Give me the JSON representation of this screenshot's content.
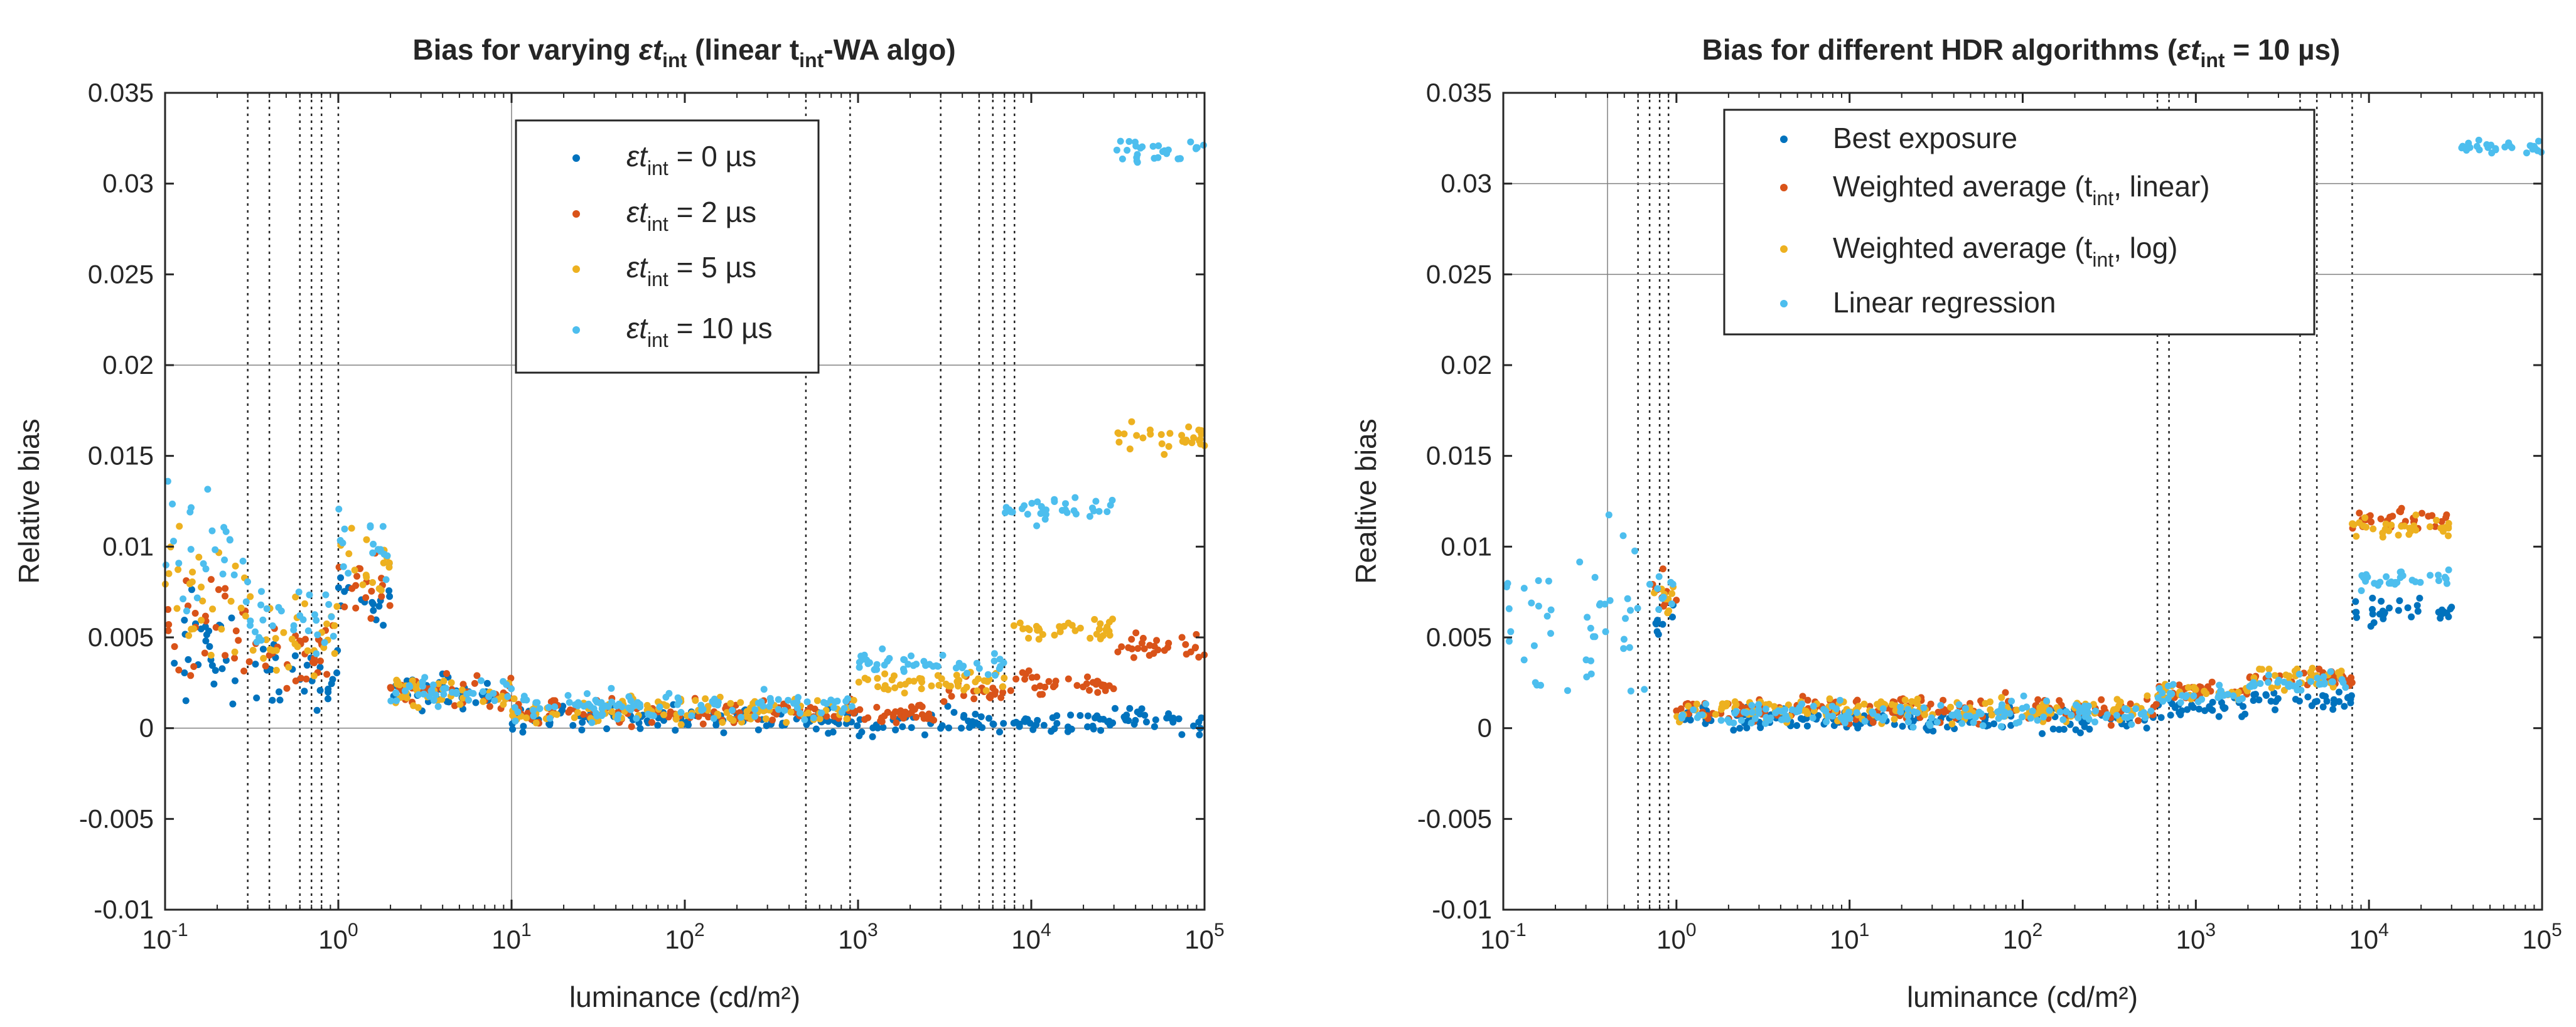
{
  "figure": {
    "left_panel": {
      "title": {
        "pre": "Bias for varying ",
        "eps": "ε",
        "t": "t",
        "int": "int",
        "post": " (linear t",
        "int2": "int",
        "post2": "-WA algo)"
      },
      "xlabel": "luminance (cd/m²)",
      "ylabel": "Relative bias",
      "legend": [
        {
          "eps": "ε",
          "t": "t",
          "int": "int",
          "rest": " = 0 µs",
          "color": "#0072BD"
        },
        {
          "eps": "ε",
          "t": "t",
          "int": "int",
          "rest": " = 2 µs",
          "color": "#D95319"
        },
        {
          "eps": "ε",
          "t": "t",
          "int": "int",
          "rest": " = 5 µs",
          "color": "#EDB120"
        },
        {
          "eps": "ε",
          "t": "t",
          "int": "int",
          "rest": " = 10 µs",
          "color": "#4DBEEE"
        }
      ]
    },
    "right_panel": {
      "title": {
        "pre": "Bias for different HDR algorithms (",
        "eps": "ε",
        "t": "t",
        "int": "int",
        "post": " = 10 µs)"
      },
      "xlabel": "luminance (cd/m²)",
      "ylabel": "Realtive bias",
      "legend": [
        {
          "text": "Best exposure",
          "color": "#0072BD"
        },
        {
          "pre": "Weighted average (t",
          "sub": "int",
          "post": ", linear)",
          "color": "#D95319"
        },
        {
          "pre": "Weighted average (t",
          "sub": "int",
          "post": ", log)",
          "color": "#EDB120"
        },
        {
          "text": "Linear regression",
          "color": "#4DBEEE"
        }
      ]
    },
    "y_tick_labels": [
      "0.035",
      "0.03",
      "0.025",
      "0.02",
      "0.015",
      "0.01",
      "0.005",
      "0",
      "-0.005",
      "-0.01"
    ],
    "x_tick_labels": [
      {
        "base": "10",
        "exp": "-1"
      },
      {
        "base": "10",
        "exp": "0"
      },
      {
        "base": "10",
        "exp": "1"
      },
      {
        "base": "10",
        "exp": "2"
      },
      {
        "base": "10",
        "exp": "3"
      },
      {
        "base": "10",
        "exp": "4"
      },
      {
        "base": "10",
        "exp": "5"
      }
    ]
  },
  "chart_data": [
    {
      "type": "scatter",
      "title": "Bias for varying εt_int (linear t_int-WA algo)",
      "xlabel": "luminance (cd/m²)",
      "ylabel": "Relative bias",
      "xscale": "log",
      "xlim": [
        0.1,
        100000
      ],
      "ylim": [
        -0.01,
        0.035
      ],
      "grid": false,
      "legend_position": "top-center",
      "vertical_dotted_lines": [
        0.3,
        0.4,
        0.6,
        0.7,
        0.8,
        1.0,
        500,
        900,
        3000,
        5000,
        6000,
        7000,
        8000
      ],
      "reference_lines": [
        {
          "axis": "y",
          "value": 0.02
        },
        {
          "axis": "y",
          "value": 0
        },
        {
          "axis": "x",
          "value": 10
        }
      ],
      "series": [
        {
          "name": "εt_int = 0 µs",
          "color": "#0072BD",
          "segments": [
            {
              "x_range": [
                0.1,
                0.3
              ],
              "level": 0.004,
              "spread": 0.007
            },
            {
              "x_range": [
                0.3,
                1.0
              ],
              "level": 0.003,
              "spread": 0.004
            },
            {
              "x_range": [
                1.0,
                2.0
              ],
              "level": 0.007,
              "spread": 0.004
            },
            {
              "x_range": [
                2.0,
                10
              ],
              "level": 0.002,
              "spread": 0.002
            },
            {
              "x_range": [
                10,
                1000
              ],
              "level": 0.0005,
              "spread": 0.0015
            },
            {
              "x_range": [
                1000,
                30000
              ],
              "level": 0.0003,
              "spread": 0.0015
            },
            {
              "x_range": [
                30000,
                100000
              ],
              "level": 0.0005,
              "spread": 0.0015
            }
          ]
        },
        {
          "name": "εt_int = 2 µs",
          "color": "#D95319",
          "segments": [
            {
              "x_range": [
                0.1,
                0.3
              ],
              "level": 0.006,
              "spread": 0.008
            },
            {
              "x_range": [
                0.3,
                1.0
              ],
              "level": 0.004,
              "spread": 0.004
            },
            {
              "x_range": [
                1.0,
                2.0
              ],
              "level": 0.008,
              "spread": 0.004
            },
            {
              "x_range": [
                2.0,
                10
              ],
              "level": 0.002,
              "spread": 0.002
            },
            {
              "x_range": [
                10,
                3000
              ],
              "level": 0.0008,
              "spread": 0.0015
            },
            {
              "x_range": [
                3000,
                7000
              ],
              "level": 0.002,
              "spread": 0.0015
            },
            {
              "x_range": [
                7000,
                30000
              ],
              "level": 0.0025,
              "spread": 0.0015
            },
            {
              "x_range": [
                30000,
                100000
              ],
              "level": 0.0045,
              "spread": 0.0015
            }
          ]
        },
        {
          "name": "εt_int = 5 µs",
          "color": "#EDB120",
          "segments": [
            {
              "x_range": [
                0.1,
                0.3
              ],
              "level": 0.007,
              "spread": 0.009
            },
            {
              "x_range": [
                0.3,
                1.0
              ],
              "level": 0.005,
              "spread": 0.004
            },
            {
              "x_range": [
                1.0,
                2.0
              ],
              "level": 0.009,
              "spread": 0.004
            },
            {
              "x_range": [
                2.0,
                10
              ],
              "level": 0.002,
              "spread": 0.002
            },
            {
              "x_range": [
                10,
                1000
              ],
              "level": 0.001,
              "spread": 0.0015
            },
            {
              "x_range": [
                1000,
                7000
              ],
              "level": 0.0025,
              "spread": 0.0015
            },
            {
              "x_range": [
                7000,
                30000
              ],
              "level": 0.0055,
              "spread": 0.0015
            },
            {
              "x_range": [
                30000,
                100000
              ],
              "level": 0.016,
              "spread": 0.002
            }
          ]
        },
        {
          "name": "εt_int = 10 µs",
          "color": "#4DBEEE",
          "segments": [
            {
              "x_range": [
                0.1,
                0.3
              ],
              "level": 0.01,
              "spread": 0.01
            },
            {
              "x_range": [
                0.3,
                1.0
              ],
              "level": 0.006,
              "spread": 0.004
            },
            {
              "x_range": [
                1.0,
                2.0
              ],
              "level": 0.01,
              "spread": 0.004
            },
            {
              "x_range": [
                2.0,
                10
              ],
              "level": 0.002,
              "spread": 0.002
            },
            {
              "x_range": [
                10,
                1000
              ],
              "level": 0.0012,
              "spread": 0.0015
            },
            {
              "x_range": [
                1000,
                7000
              ],
              "level": 0.0035,
              "spread": 0.0015
            },
            {
              "x_range": [
                7000,
                30000
              ],
              "level": 0.012,
              "spread": 0.0015
            },
            {
              "x_range": [
                30000,
                100000
              ],
              "level": 0.032,
              "spread": 0.0015
            }
          ]
        }
      ]
    },
    {
      "type": "scatter",
      "title": "Bias for different HDR algorithms (εt_int = 10 µs)",
      "xlabel": "luminance (cd/m²)",
      "ylabel": "Realtive bias",
      "xscale": "log",
      "xlim": [
        0.1,
        100000
      ],
      "ylim": [
        -0.01,
        0.035
      ],
      "grid": false,
      "legend_position": "top-center",
      "vertical_dotted_lines": [
        0.6,
        0.7,
        0.8,
        0.9,
        600,
        700,
        4000,
        5000,
        8000
      ],
      "reference_lines": [
        {
          "axis": "y",
          "value": 0.035
        },
        {
          "axis": "y",
          "value": 0.03
        },
        {
          "axis": "y",
          "value": 0.025
        },
        {
          "axis": "x",
          "value": 0.4
        }
      ],
      "series": [
        {
          "name": "Best exposure",
          "color": "#0072BD",
          "segments": [
            {
              "x_range": [
                0.7,
                1.0
              ],
              "level": 0.006,
              "spread": 0.002
            },
            {
              "x_range": [
                1.0,
                600
              ],
              "level": 0.0005,
              "spread": 0.0015
            },
            {
              "x_range": [
                600,
                2000
              ],
              "level": 0.001,
              "spread": 0.0012
            },
            {
              "x_range": [
                2000,
                8000
              ],
              "level": 0.0015,
              "spread": 0.0012
            },
            {
              "x_range": [
                8000,
                30000
              ],
              "level": 0.0065,
              "spread": 0.0015
            }
          ]
        },
        {
          "name": "Weighted average (t_int, linear)",
          "color": "#D95319",
          "segments": [
            {
              "x_range": [
                0.7,
                1.0
              ],
              "level": 0.0075,
              "spread": 0.002
            },
            {
              "x_range": [
                1.0,
                600
              ],
              "level": 0.001,
              "spread": 0.0015
            },
            {
              "x_range": [
                600,
                2000
              ],
              "level": 0.002,
              "spread": 0.0012
            },
            {
              "x_range": [
                2000,
                8000
              ],
              "level": 0.0028,
              "spread": 0.0012
            },
            {
              "x_range": [
                8000,
                30000
              ],
              "level": 0.0115,
              "spread": 0.0012
            }
          ]
        },
        {
          "name": "Weighted average (t_int, log)",
          "color": "#EDB120",
          "segments": [
            {
              "x_range": [
                0.7,
                1.0
              ],
              "level": 0.0075,
              "spread": 0.002
            },
            {
              "x_range": [
                1.0,
                600
              ],
              "level": 0.001,
              "spread": 0.0015
            },
            {
              "x_range": [
                600,
                2000
              ],
              "level": 0.002,
              "spread": 0.0012
            },
            {
              "x_range": [
                2000,
                8000
              ],
              "level": 0.0028,
              "spread": 0.0012
            },
            {
              "x_range": [
                8000,
                30000
              ],
              "level": 0.011,
              "spread": 0.0012
            }
          ]
        },
        {
          "name": "Linear regression",
          "color": "#4DBEEE",
          "segments": [
            {
              "x_range": [
                0.1,
                0.7
              ],
              "level": 0.006,
              "spread": 0.01
            },
            {
              "x_range": [
                0.7,
                1.0
              ],
              "level": 0.0075,
              "spread": 0.002
            },
            {
              "x_range": [
                1.0,
                600
              ],
              "level": 0.0008,
              "spread": 0.0015
            },
            {
              "x_range": [
                600,
                2000
              ],
              "level": 0.0018,
              "spread": 0.0012
            },
            {
              "x_range": [
                2000,
                8000
              ],
              "level": 0.0025,
              "spread": 0.0012
            },
            {
              "x_range": [
                8000,
                30000
              ],
              "level": 0.0082,
              "spread": 0.0012
            },
            {
              "x_range": [
                30000,
                100000
              ],
              "level": 0.032,
              "spread": 0.0012
            }
          ]
        }
      ]
    }
  ]
}
